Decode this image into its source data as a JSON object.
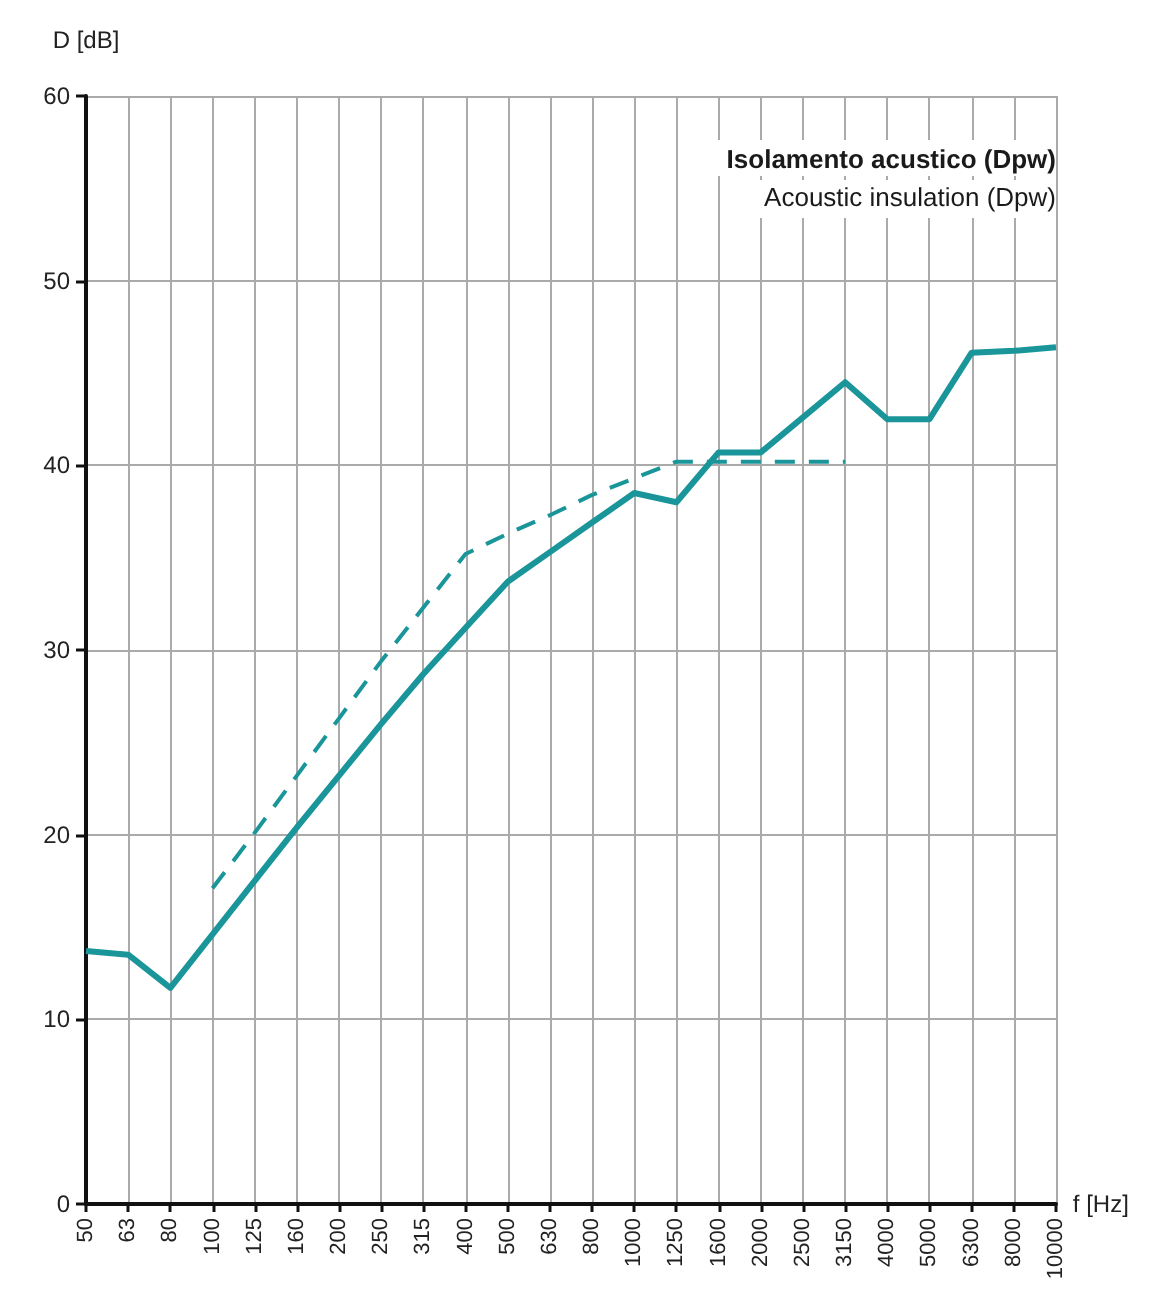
{
  "chart_data": {
    "type": "line",
    "title": "Isolamento acustico (Dpw)",
    "subtitle": "Acoustic insulation (Dpw)",
    "xlabel": "f [Hz]",
    "ylabel": "D [dB]",
    "categories": [
      "50",
      "63",
      "80",
      "100",
      "125",
      "160",
      "200",
      "250",
      "315",
      "400",
      "500",
      "630",
      "800",
      "1000",
      "1250",
      "1600",
      "2000",
      "2500",
      "3150",
      "4000",
      "5000",
      "6300",
      "8000",
      "10000"
    ],
    "series": [
      {
        "color": "#1a9599",
        "line_style": "solid",
        "values": [
          13.7,
          13.5,
          11.7,
          14.6,
          17.5,
          20.4,
          23.2,
          26.0,
          28.7,
          31.2,
          33.7,
          35.3,
          36.9,
          38.5,
          38.0,
          40.7,
          40.7,
          42.6,
          44.5,
          42.5,
          42.5,
          46.1,
          46.2,
          46.4
        ]
      },
      {
        "color": "#1a9599",
        "line_style": "dashed",
        "values": [
          null,
          null,
          null,
          17.1,
          20.1,
          23.2,
          26.3,
          29.4,
          32.3,
          35.2,
          36.3,
          37.3,
          38.4,
          39.3,
          40.2,
          40.2,
          40.2,
          40.2,
          40.2,
          null,
          null,
          null,
          null,
          null
        ]
      }
    ],
    "ylim": [
      0,
      60
    ],
    "yticks": [
      0,
      10,
      20,
      30,
      40,
      50,
      60
    ],
    "grid": true,
    "marker": "none"
  }
}
